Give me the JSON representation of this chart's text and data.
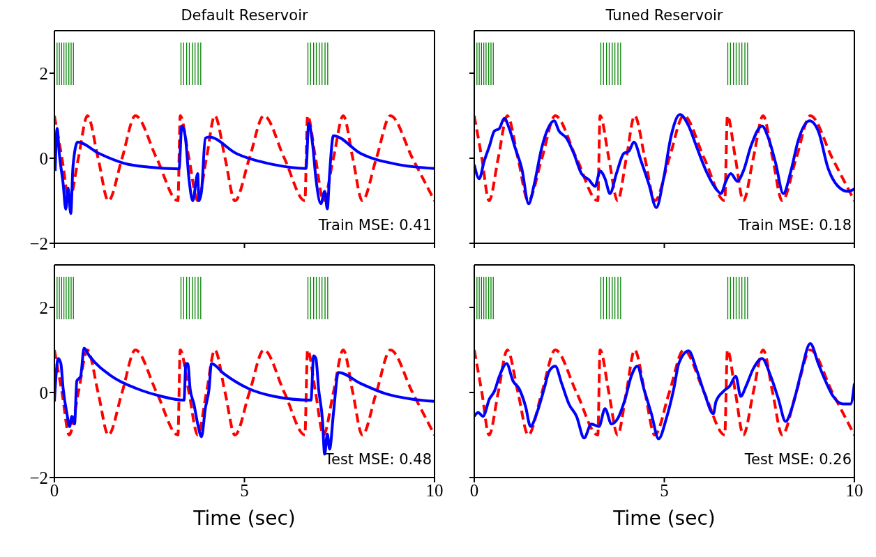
{
  "chart_data": [
    {
      "type": "line",
      "title": "Default Reservoir",
      "annotations": [
        "Train MSE: 0.41"
      ],
      "xlim": [
        0,
        10
      ],
      "ylim": [
        -2,
        3
      ],
      "xticks": [
        0,
        5,
        10
      ],
      "yticks": [
        -2,
        0,
        2
      ],
      "tick_labels": "y",
      "grid": false,
      "marker": "none",
      "series": [
        {
          "color": "#008000",
          "x": [
            0.07,
            0.07
          ],
          "values": [
            1.72,
            2.72
          ]
        },
        {
          "color": "#008000",
          "x": [
            0.13,
            0.13
          ],
          "values": [
            1.72,
            2.72
          ]
        },
        {
          "color": "#008000",
          "x": [
            0.19,
            0.19
          ],
          "values": [
            1.72,
            2.72
          ]
        },
        {
          "color": "#008000",
          "x": [
            0.25,
            0.25
          ],
          "values": [
            1.72,
            2.72
          ]
        },
        {
          "color": "#008000",
          "x": [
            0.31,
            0.31
          ],
          "values": [
            1.72,
            2.72
          ]
        },
        {
          "color": "#008000",
          "x": [
            0.38,
            0.38
          ],
          "values": [
            1.72,
            2.72
          ]
        },
        {
          "color": "#008000",
          "x": [
            0.44,
            0.44
          ],
          "values": [
            1.72,
            2.72
          ]
        },
        {
          "color": "#008000",
          "x": [
            0.5,
            0.5
          ],
          "values": [
            1.72,
            2.72
          ]
        },
        {
          "color": "#008000",
          "x": [
            3.33,
            3.33
          ],
          "values": [
            1.72,
            2.72
          ]
        },
        {
          "color": "#008000",
          "x": [
            3.4,
            3.4
          ],
          "values": [
            1.72,
            2.72
          ]
        },
        {
          "color": "#008000",
          "x": [
            3.48,
            3.48
          ],
          "values": [
            1.72,
            2.72
          ]
        },
        {
          "color": "#008000",
          "x": [
            3.55,
            3.55
          ],
          "values": [
            1.72,
            2.72
          ]
        },
        {
          "color": "#008000",
          "x": [
            3.63,
            3.63
          ],
          "values": [
            1.72,
            2.72
          ]
        },
        {
          "color": "#008000",
          "x": [
            3.7,
            3.7
          ],
          "values": [
            1.72,
            2.72
          ]
        },
        {
          "color": "#008000",
          "x": [
            3.78,
            3.78
          ],
          "values": [
            1.72,
            2.72
          ]
        },
        {
          "color": "#008000",
          "x": [
            3.85,
            3.85
          ],
          "values": [
            1.72,
            2.72
          ]
        },
        {
          "color": "#008000",
          "x": [
            6.67,
            6.67
          ],
          "values": [
            1.72,
            2.72
          ]
        },
        {
          "color": "#008000",
          "x": [
            6.74,
            6.74
          ],
          "values": [
            1.72,
            2.72
          ]
        },
        {
          "color": "#008000",
          "x": [
            6.82,
            6.82
          ],
          "values": [
            1.72,
            2.72
          ]
        },
        {
          "color": "#008000",
          "x": [
            6.89,
            6.89
          ],
          "values": [
            1.72,
            2.72
          ]
        },
        {
          "color": "#008000",
          "x": [
            6.97,
            6.97
          ],
          "values": [
            1.72,
            2.72
          ]
        },
        {
          "color": "#008000",
          "x": [
            7.04,
            7.04
          ],
          "values": [
            1.72,
            2.72
          ]
        },
        {
          "color": "#008000",
          "x": [
            7.12,
            7.12
          ],
          "values": [
            1.72,
            2.72
          ]
        },
        {
          "color": "#008000",
          "x": [
            7.19,
            7.19
          ],
          "values": [
            1.72,
            2.72
          ]
        },
        {
          "color": "#ff0000",
          "line_style": "dashed",
          "x": [
            0,
            0.2,
            0.39,
            0.63,
            0.87,
            1.15,
            1.42,
            1.78,
            2.13,
            2.69,
            3.25,
            3.31,
            3.54,
            3.77,
            4.0,
            4.22,
            4.49,
            4.75,
            5.13,
            5.51,
            6.05,
            6.59,
            6.66,
            6.87,
            7.08,
            7.34,
            7.6,
            7.85,
            8.1,
            8.47,
            8.84,
            9.42,
            10
          ],
          "values": [
            1,
            0,
            -1,
            0,
            1,
            0,
            -1,
            0,
            1,
            0,
            -1,
            1,
            0,
            -1,
            0,
            1,
            0,
            -1,
            0,
            1,
            0,
            -1,
            1,
            0,
            -1,
            0,
            1,
            0,
            -1,
            0,
            1,
            0,
            -1
          ]
        },
        {
          "color": "#0000ff",
          "line_style": "solid",
          "x": [
            0.02,
            0.07,
            0.13,
            0.23,
            0.3,
            0.36,
            0.43,
            0.49,
            0.61,
            1.18,
            1.84,
            2.49,
            3.28,
            3.35,
            3.44,
            3.54,
            3.64,
            3.77,
            3.8,
            3.87,
            3.97,
            4.07,
            4.79,
            5.77,
            6.62,
            6.69,
            6.79,
            6.88,
            7.01,
            7.11,
            7.18,
            7.24,
            7.34,
            8.06,
            9.05,
            10
          ],
          "values": [
            -0.3,
            0.7,
            0.1,
            -0.6,
            -1.2,
            -0.7,
            -1.3,
            -0.18,
            0.38,
            0.11,
            -0.12,
            -0.21,
            -0.25,
            0.76,
            0.53,
            -0.48,
            -1.0,
            -0.36,
            -1.0,
            -0.78,
            0.47,
            0.5,
            0.11,
            -0.15,
            -0.24,
            0.82,
            0.35,
            -0.48,
            -1.07,
            -0.78,
            -1.19,
            -0.36,
            0.53,
            0.11,
            -0.15,
            -0.24
          ]
        }
      ]
    },
    {
      "type": "line",
      "title": "Tuned Reservoir",
      "annotations": [
        "Train MSE: 0.18"
      ],
      "xlim": [
        0,
        10
      ],
      "ylim": [
        -2,
        3
      ],
      "xticks": [
        0,
        5,
        10
      ],
      "yticks": [
        -2,
        0,
        2
      ],
      "tick_labels": false,
      "grid": false,
      "marker": "none",
      "series": [
        {
          "color": "#008000",
          "x": [
            0.07,
            0.07
          ],
          "values": [
            1.72,
            2.72
          ]
        },
        {
          "color": "#008000",
          "x": [
            0.13,
            0.13
          ],
          "values": [
            1.72,
            2.72
          ]
        },
        {
          "color": "#008000",
          "x": [
            0.19,
            0.19
          ],
          "values": [
            1.72,
            2.72
          ]
        },
        {
          "color": "#008000",
          "x": [
            0.25,
            0.25
          ],
          "values": [
            1.72,
            2.72
          ]
        },
        {
          "color": "#008000",
          "x": [
            0.31,
            0.31
          ],
          "values": [
            1.72,
            2.72
          ]
        },
        {
          "color": "#008000",
          "x": [
            0.38,
            0.38
          ],
          "values": [
            1.72,
            2.72
          ]
        },
        {
          "color": "#008000",
          "x": [
            0.44,
            0.44
          ],
          "values": [
            1.72,
            2.72
          ]
        },
        {
          "color": "#008000",
          "x": [
            0.5,
            0.5
          ],
          "values": [
            1.72,
            2.72
          ]
        },
        {
          "color": "#008000",
          "x": [
            3.33,
            3.33
          ],
          "values": [
            1.72,
            2.72
          ]
        },
        {
          "color": "#008000",
          "x": [
            3.4,
            3.4
          ],
          "values": [
            1.72,
            2.72
          ]
        },
        {
          "color": "#008000",
          "x": [
            3.48,
            3.48
          ],
          "values": [
            1.72,
            2.72
          ]
        },
        {
          "color": "#008000",
          "x": [
            3.55,
            3.55
          ],
          "values": [
            1.72,
            2.72
          ]
        },
        {
          "color": "#008000",
          "x": [
            3.63,
            3.63
          ],
          "values": [
            1.72,
            2.72
          ]
        },
        {
          "color": "#008000",
          "x": [
            3.7,
            3.7
          ],
          "values": [
            1.72,
            2.72
          ]
        },
        {
          "color": "#008000",
          "x": [
            3.78,
            3.78
          ],
          "values": [
            1.72,
            2.72
          ]
        },
        {
          "color": "#008000",
          "x": [
            3.85,
            3.85
          ],
          "values": [
            1.72,
            2.72
          ]
        },
        {
          "color": "#008000",
          "x": [
            6.67,
            6.67
          ],
          "values": [
            1.72,
            2.72
          ]
        },
        {
          "color": "#008000",
          "x": [
            6.74,
            6.74
          ],
          "values": [
            1.72,
            2.72
          ]
        },
        {
          "color": "#008000",
          "x": [
            6.82,
            6.82
          ],
          "values": [
            1.72,
            2.72
          ]
        },
        {
          "color": "#008000",
          "x": [
            6.89,
            6.89
          ],
          "values": [
            1.72,
            2.72
          ]
        },
        {
          "color": "#008000",
          "x": [
            6.97,
            6.97
          ],
          "values": [
            1.72,
            2.72
          ]
        },
        {
          "color": "#008000",
          "x": [
            7.04,
            7.04
          ],
          "values": [
            1.72,
            2.72
          ]
        },
        {
          "color": "#008000",
          "x": [
            7.12,
            7.12
          ],
          "values": [
            1.72,
            2.72
          ]
        },
        {
          "color": "#008000",
          "x": [
            7.19,
            7.19
          ],
          "values": [
            1.72,
            2.72
          ]
        },
        {
          "color": "#ff0000",
          "line_style": "dashed",
          "x": [
            0,
            0.2,
            0.39,
            0.63,
            0.87,
            1.15,
            1.42,
            1.78,
            2.13,
            2.69,
            3.25,
            3.31,
            3.54,
            3.77,
            4.0,
            4.22,
            4.49,
            4.75,
            5.13,
            5.51,
            6.05,
            6.59,
            6.66,
            6.87,
            7.08,
            7.34,
            7.6,
            7.85,
            8.1,
            8.47,
            8.84,
            9.42,
            10
          ],
          "values": [
            1,
            0,
            -1,
            0,
            1,
            0,
            -1,
            0,
            1,
            0,
            -1,
            1,
            0,
            -1,
            0,
            1,
            0,
            -1,
            0,
            1,
            0,
            -1,
            1,
            0,
            -1,
            0,
            1,
            0,
            -1,
            0,
            1,
            0,
            -1
          ]
        },
        {
          "color": "#0000ff",
          "line_style": "solid",
          "x": [
            0,
            0.13,
            0.26,
            0.4,
            0.53,
            0.66,
            0.79,
            0.92,
            1.08,
            1.25,
            1.43,
            1.58,
            1.77,
            1.94,
            2.1,
            2.23,
            2.43,
            2.62,
            2.82,
            3.02,
            3.18,
            3.31,
            3.44,
            3.57,
            3.74,
            3.93,
            4.07,
            4.2,
            4.39,
            4.59,
            4.79,
            4.98,
            5.18,
            5.41,
            5.64,
            5.84,
            6.1,
            6.36,
            6.49,
            6.62,
            6.75,
            6.92,
            7.08,
            7.28,
            7.57,
            7.74,
            7.93,
            8.13,
            8.33,
            8.52,
            8.82,
            9.05,
            9.31,
            9.57,
            9.83,
            10
          ],
          "values": [
            -0.15,
            -0.48,
            -0.07,
            0.29,
            0.64,
            0.7,
            0.94,
            0.7,
            0.23,
            -0.24,
            -1.07,
            -0.6,
            0.23,
            0.7,
            0.88,
            0.64,
            0.47,
            0.11,
            -0.36,
            -0.51,
            -0.66,
            -0.3,
            -0.48,
            -0.83,
            -0.36,
            0.11,
            0.17,
            0.38,
            -0.07,
            -0.6,
            -1.16,
            -0.48,
            0.53,
            1.03,
            0.76,
            0.29,
            -0.3,
            -0.72,
            -0.83,
            -0.54,
            -0.36,
            -0.54,
            -0.3,
            0.29,
            0.76,
            0.47,
            -0.12,
            -0.83,
            -0.3,
            0.41,
            0.88,
            0.64,
            -0.24,
            -0.66,
            -0.78,
            -0.72
          ]
        }
      ]
    },
    {
      "type": "line",
      "xlabel": "Time (sec)",
      "annotations": [
        "Test MSE: 0.48"
      ],
      "xlim": [
        0,
        10
      ],
      "ylim": [
        -2,
        3
      ],
      "xticks": [
        0,
        5,
        10
      ],
      "yticks": [
        -2,
        0,
        2
      ],
      "grid": false,
      "marker": "none",
      "series": [
        {
          "color": "#008000",
          "x": [
            0.07,
            0.07
          ],
          "values": [
            1.72,
            2.72
          ]
        },
        {
          "color": "#008000",
          "x": [
            0.13,
            0.13
          ],
          "values": [
            1.72,
            2.72
          ]
        },
        {
          "color": "#008000",
          "x": [
            0.19,
            0.19
          ],
          "values": [
            1.72,
            2.72
          ]
        },
        {
          "color": "#008000",
          "x": [
            0.25,
            0.25
          ],
          "values": [
            1.72,
            2.72
          ]
        },
        {
          "color": "#008000",
          "x": [
            0.31,
            0.31
          ],
          "values": [
            1.72,
            2.72
          ]
        },
        {
          "color": "#008000",
          "x": [
            0.38,
            0.38
          ],
          "values": [
            1.72,
            2.72
          ]
        },
        {
          "color": "#008000",
          "x": [
            0.44,
            0.44
          ],
          "values": [
            1.72,
            2.72
          ]
        },
        {
          "color": "#008000",
          "x": [
            0.5,
            0.5
          ],
          "values": [
            1.72,
            2.72
          ]
        },
        {
          "color": "#008000",
          "x": [
            3.33,
            3.33
          ],
          "values": [
            1.72,
            2.72
          ]
        },
        {
          "color": "#008000",
          "x": [
            3.4,
            3.4
          ],
          "values": [
            1.72,
            2.72
          ]
        },
        {
          "color": "#008000",
          "x": [
            3.48,
            3.48
          ],
          "values": [
            1.72,
            2.72
          ]
        },
        {
          "color": "#008000",
          "x": [
            3.55,
            3.55
          ],
          "values": [
            1.72,
            2.72
          ]
        },
        {
          "color": "#008000",
          "x": [
            3.63,
            3.63
          ],
          "values": [
            1.72,
            2.72
          ]
        },
        {
          "color": "#008000",
          "x": [
            3.7,
            3.7
          ],
          "values": [
            1.72,
            2.72
          ]
        },
        {
          "color": "#008000",
          "x": [
            3.78,
            3.78
          ],
          "values": [
            1.72,
            2.72
          ]
        },
        {
          "color": "#008000",
          "x": [
            3.85,
            3.85
          ],
          "values": [
            1.72,
            2.72
          ]
        },
        {
          "color": "#008000",
          "x": [
            6.67,
            6.67
          ],
          "values": [
            1.72,
            2.72
          ]
        },
        {
          "color": "#008000",
          "x": [
            6.74,
            6.74
          ],
          "values": [
            1.72,
            2.72
          ]
        },
        {
          "color": "#008000",
          "x": [
            6.82,
            6.82
          ],
          "values": [
            1.72,
            2.72
          ]
        },
        {
          "color": "#008000",
          "x": [
            6.89,
            6.89
          ],
          "values": [
            1.72,
            2.72
          ]
        },
        {
          "color": "#008000",
          "x": [
            6.97,
            6.97
          ],
          "values": [
            1.72,
            2.72
          ]
        },
        {
          "color": "#008000",
          "x": [
            7.04,
            7.04
          ],
          "values": [
            1.72,
            2.72
          ]
        },
        {
          "color": "#008000",
          "x": [
            7.12,
            7.12
          ],
          "values": [
            1.72,
            2.72
          ]
        },
        {
          "color": "#008000",
          "x": [
            7.19,
            7.19
          ],
          "values": [
            1.72,
            2.72
          ]
        },
        {
          "color": "#ff0000",
          "line_style": "dashed",
          "x": [
            0,
            0.2,
            0.39,
            0.63,
            0.87,
            1.15,
            1.42,
            1.78,
            2.13,
            2.69,
            3.25,
            3.31,
            3.54,
            3.77,
            4.0,
            4.22,
            4.49,
            4.75,
            5.13,
            5.51,
            6.05,
            6.59,
            6.66,
            6.87,
            7.08,
            7.34,
            7.6,
            7.85,
            8.1,
            8.47,
            8.84,
            9.42,
            10
          ],
          "values": [
            1,
            0,
            -1,
            0,
            1,
            0,
            -1,
            0,
            1,
            0,
            -1,
            1,
            0,
            -1,
            0,
            1,
            0,
            -1,
            0,
            1,
            0,
            -1,
            1,
            0,
            -1,
            0,
            1,
            0,
            -1,
            0,
            1,
            0,
            -1
          ]
        },
        {
          "color": "#0000ff",
          "line_style": "solid",
          "x": [
            0,
            0.1,
            0.17,
            0.23,
            0.33,
            0.4,
            0.46,
            0.53,
            0.59,
            0.69,
            0.78,
            0.92,
            1.51,
            2.17,
            2.82,
            3.41,
            3.46,
            3.51,
            3.57,
            3.67,
            3.77,
            3.87,
            3.97,
            4.07,
            4.13,
            4.46,
            5.11,
            5.77,
            6.75,
            6.82,
            6.88,
            6.95,
            7.05,
            7.11,
            7.18,
            7.24,
            7.34,
            7.47,
            8.06,
            8.72,
            9.37,
            10
          ],
          "values": [
            -0.21,
            0.8,
            0.68,
            0.09,
            -0.5,
            -0.8,
            -0.56,
            -0.74,
            0.27,
            0.38,
            1.04,
            0.86,
            0.38,
            0.09,
            -0.09,
            -0.18,
            0.68,
            0.68,
            0.09,
            -0.27,
            -0.74,
            -1.04,
            -0.38,
            0.09,
            0.68,
            0.44,
            0.09,
            -0.09,
            -0.18,
            0.86,
            0.8,
            0.09,
            -0.62,
            -1.45,
            -0.98,
            -1.33,
            -0.5,
            0.47,
            0.21,
            -0.03,
            -0.15,
            -0.21
          ]
        }
      ]
    },
    {
      "type": "line",
      "xlabel": "Time (sec)",
      "annotations": [
        "Test MSE: 0.26"
      ],
      "xlim": [
        0,
        10
      ],
      "ylim": [
        -2,
        3
      ],
      "xticks": [
        0,
        5,
        10
      ],
      "yticks": [
        -2,
        0,
        2
      ],
      "tick_labels": "x",
      "grid": false,
      "marker": "none",
      "series": [
        {
          "color": "#008000",
          "x": [
            0.07,
            0.07
          ],
          "values": [
            1.72,
            2.72
          ]
        },
        {
          "color": "#008000",
          "x": [
            0.13,
            0.13
          ],
          "values": [
            1.72,
            2.72
          ]
        },
        {
          "color": "#008000",
          "x": [
            0.19,
            0.19
          ],
          "values": [
            1.72,
            2.72
          ]
        },
        {
          "color": "#008000",
          "x": [
            0.25,
            0.25
          ],
          "values": [
            1.72,
            2.72
          ]
        },
        {
          "color": "#008000",
          "x": [
            0.31,
            0.31
          ],
          "values": [
            1.72,
            2.72
          ]
        },
        {
          "color": "#008000",
          "x": [
            0.38,
            0.38
          ],
          "values": [
            1.72,
            2.72
          ]
        },
        {
          "color": "#008000",
          "x": [
            0.44,
            0.44
          ],
          "values": [
            1.72,
            2.72
          ]
        },
        {
          "color": "#008000",
          "x": [
            0.5,
            0.5
          ],
          "values": [
            1.72,
            2.72
          ]
        },
        {
          "color": "#008000",
          "x": [
            3.33,
            3.33
          ],
          "values": [
            1.72,
            2.72
          ]
        },
        {
          "color": "#008000",
          "x": [
            3.4,
            3.4
          ],
          "values": [
            1.72,
            2.72
          ]
        },
        {
          "color": "#008000",
          "x": [
            3.48,
            3.48
          ],
          "values": [
            1.72,
            2.72
          ]
        },
        {
          "color": "#008000",
          "x": [
            3.55,
            3.55
          ],
          "values": [
            1.72,
            2.72
          ]
        },
        {
          "color": "#008000",
          "x": [
            3.63,
            3.63
          ],
          "values": [
            1.72,
            2.72
          ]
        },
        {
          "color": "#008000",
          "x": [
            3.7,
            3.7
          ],
          "values": [
            1.72,
            2.72
          ]
        },
        {
          "color": "#008000",
          "x": [
            3.78,
            3.78
          ],
          "values": [
            1.72,
            2.72
          ]
        },
        {
          "color": "#008000",
          "x": [
            3.85,
            3.85
          ],
          "values": [
            1.72,
            2.72
          ]
        },
        {
          "color": "#008000",
          "x": [
            6.67,
            6.67
          ],
          "values": [
            1.72,
            2.72
          ]
        },
        {
          "color": "#008000",
          "x": [
            6.74,
            6.74
          ],
          "values": [
            1.72,
            2.72
          ]
        },
        {
          "color": "#008000",
          "x": [
            6.82,
            6.82
          ],
          "values": [
            1.72,
            2.72
          ]
        },
        {
          "color": "#008000",
          "x": [
            6.89,
            6.89
          ],
          "values": [
            1.72,
            2.72
          ]
        },
        {
          "color": "#008000",
          "x": [
            6.97,
            6.97
          ],
          "values": [
            1.72,
            2.72
          ]
        },
        {
          "color": "#008000",
          "x": [
            7.04,
            7.04
          ],
          "values": [
            1.72,
            2.72
          ]
        },
        {
          "color": "#008000",
          "x": [
            7.12,
            7.12
          ],
          "values": [
            1.72,
            2.72
          ]
        },
        {
          "color": "#008000",
          "x": [
            7.19,
            7.19
          ],
          "values": [
            1.72,
            2.72
          ]
        },
        {
          "color": "#ff0000",
          "line_style": "dashed",
          "x": [
            0,
            0.2,
            0.39,
            0.63,
            0.87,
            1.15,
            1.42,
            1.78,
            2.13,
            2.69,
            3.25,
            3.31,
            3.54,
            3.77,
            4.0,
            4.22,
            4.49,
            4.75,
            5.13,
            5.51,
            6.05,
            6.59,
            6.66,
            6.87,
            7.08,
            7.34,
            7.6,
            7.85,
            8.1,
            8.47,
            8.84,
            9.42,
            10
          ],
          "values": [
            1,
            0,
            -1,
            0,
            1,
            0,
            -1,
            0,
            1,
            0,
            -1,
            1,
            0,
            -1,
            0,
            1,
            0,
            -1,
            0,
            1,
            0,
            -1,
            1,
            0,
            -1,
            0,
            1,
            0,
            -1,
            0,
            1,
            0,
            -1
          ]
        },
        {
          "color": "#0000ff",
          "line_style": "solid",
          "x": [
            0,
            0.1,
            0.23,
            0.4,
            0.53,
            0.66,
            0.85,
            1.02,
            1.18,
            1.35,
            1.48,
            1.64,
            1.84,
            1.97,
            2.13,
            2.3,
            2.49,
            2.69,
            2.89,
            3.08,
            3.28,
            3.44,
            3.61,
            3.77,
            3.97,
            4.13,
            4.29,
            4.46,
            4.66,
            4.85,
            5.05,
            5.25,
            5.38,
            5.64,
            5.84,
            6.06,
            6.29,
            6.36,
            6.56,
            6.72,
            6.88,
            7.01,
            7.15,
            7.34,
            7.57,
            7.8,
            8.0,
            8.19,
            8.39,
            8.59,
            8.84,
            9.05,
            9.24,
            9.44,
            9.7,
            9.9,
            10
          ],
          "values": [
            -0.56,
            -0.47,
            -0.56,
            -0.15,
            0.03,
            0.38,
            0.68,
            0.27,
            0.09,
            -0.33,
            -0.8,
            -0.5,
            0.09,
            0.5,
            0.62,
            0.21,
            -0.27,
            -0.56,
            -1.07,
            -0.74,
            -0.8,
            -0.38,
            -0.74,
            -0.62,
            -0.15,
            0.38,
            0.62,
            0.09,
            -0.5,
            -1.09,
            -0.62,
            0.09,
            0.68,
            0.98,
            0.56,
            -0.03,
            -0.5,
            -0.21,
            0.03,
            0.15,
            0.38,
            -0.09,
            0.15,
            0.56,
            0.8,
            0.38,
            -0.15,
            -0.68,
            -0.27,
            0.44,
            1.15,
            0.68,
            0.27,
            -0.09,
            -0.27,
            -0.27,
            0.21
          ]
        }
      ]
    }
  ]
}
